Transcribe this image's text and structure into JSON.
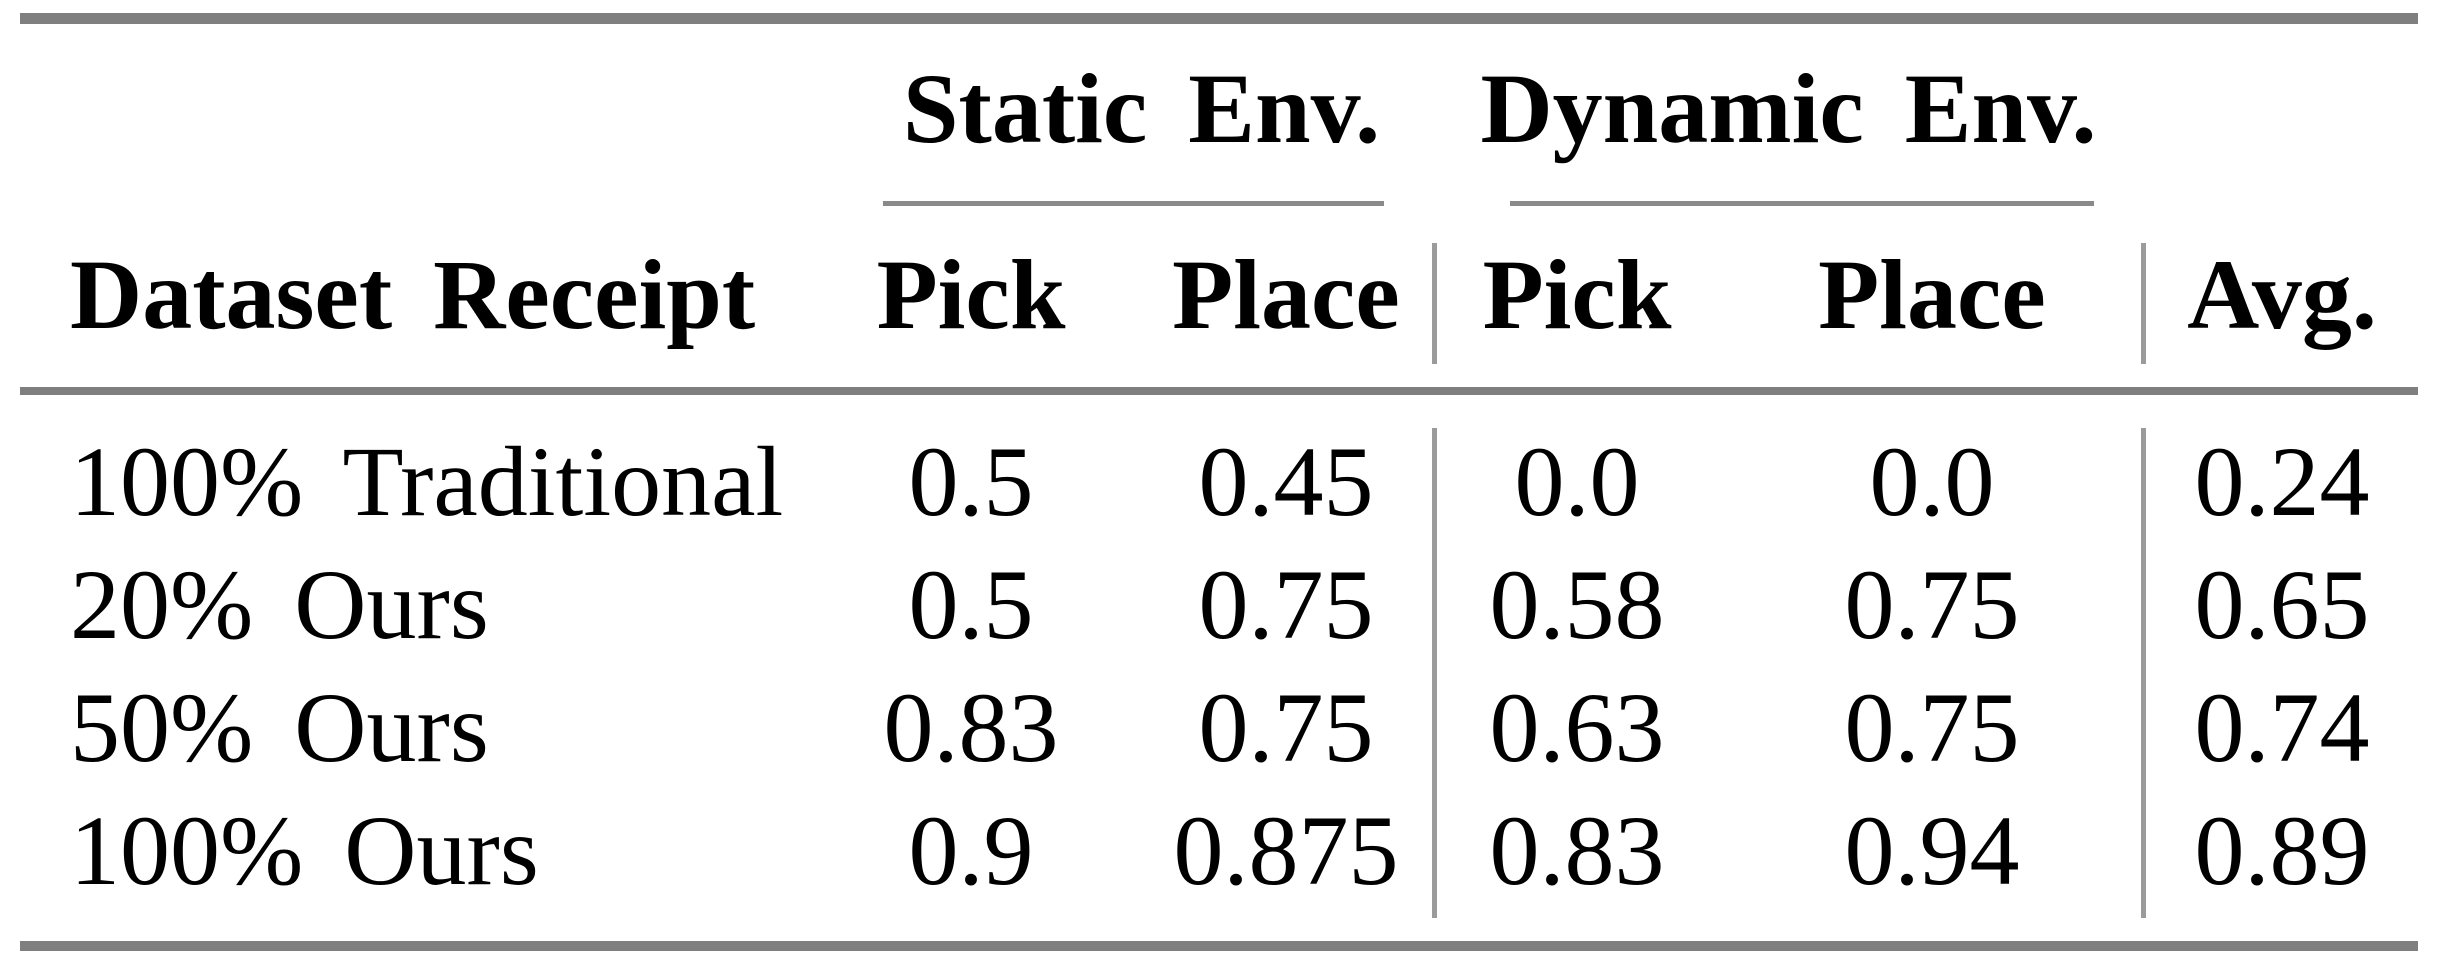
{
  "table": {
    "group_headers": [
      {
        "label": "Static Env."
      },
      {
        "label": "Dynamic Env."
      }
    ],
    "columns": {
      "row_label": "Dataset Receipt",
      "static_pick": "Pick",
      "static_place": "Place",
      "dynamic_pick": "Pick",
      "dynamic_place": "Place",
      "avg": "Avg."
    },
    "rows": [
      {
        "label": "100% Traditional",
        "static_pick": "0.5",
        "static_place": "0.45",
        "dynamic_pick": "0.0",
        "dynamic_place": "0.0",
        "avg": "0.24"
      },
      {
        "label": "20% Ours",
        "static_pick": "0.5",
        "static_place": "0.75",
        "dynamic_pick": "0.58",
        "dynamic_place": "0.75",
        "avg": "0.65"
      },
      {
        "label": "50% Ours",
        "static_pick": "0.83",
        "static_place": "0.75",
        "dynamic_pick": "0.63",
        "dynamic_place": "0.75",
        "avg": "0.74"
      },
      {
        "label": "100% Ours",
        "static_pick": "0.9",
        "static_place": "0.875",
        "dynamic_pick": "0.83",
        "dynamic_place": "0.94",
        "avg": "0.89"
      }
    ]
  },
  "colors": {
    "heavy_rule": "#7f7f7f",
    "cmidrule": "#8a8a8a",
    "vertical_rule": "#9b9b9b",
    "text": "#000000",
    "background": "#ffffff"
  },
  "chart_data": {
    "type": "table",
    "title": "",
    "column_groups": [
      "Static Env.",
      "Dynamic Env."
    ],
    "columns": [
      "Dataset Receipt",
      "Static Env. Pick",
      "Static Env. Place",
      "Dynamic Env. Pick",
      "Dynamic Env. Place",
      "Avg."
    ],
    "rows": [
      [
        "100% Traditional",
        0.5,
        0.45,
        0.0,
        0.0,
        0.24
      ],
      [
        "20% Ours",
        0.5,
        0.75,
        0.58,
        0.75,
        0.65
      ],
      [
        "50% Ours",
        0.83,
        0.75,
        0.63,
        0.75,
        0.74
      ],
      [
        "100% Ours",
        0.9,
        0.875,
        0.83,
        0.94,
        0.89
      ]
    ]
  }
}
